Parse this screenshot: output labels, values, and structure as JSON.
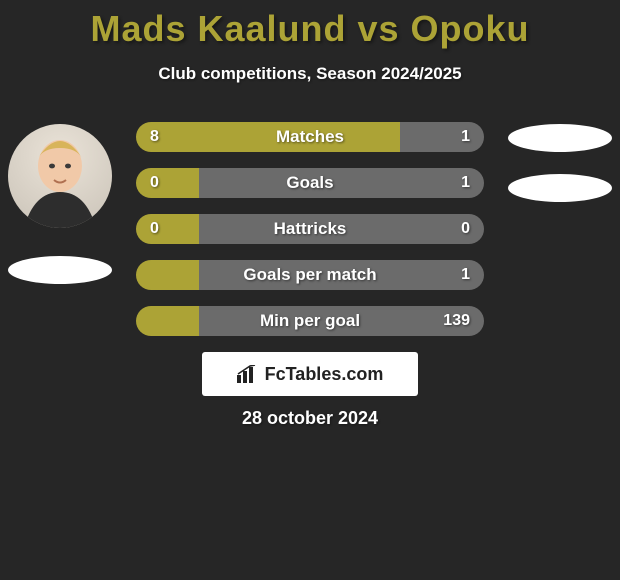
{
  "title_color": "#aca336",
  "title": "Mads Kaalund vs Opoku",
  "subtitle": "Club competitions, Season 2024/2025",
  "brand": "FcTables.com",
  "date": "28 october 2024",
  "colors": {
    "left_segment": "#aca336",
    "right_segment": "#6b6b6b",
    "background": "#262626",
    "text": "#ffffff"
  },
  "players": {
    "left": {
      "has_photo": true,
      "flag_shapes": 1
    },
    "right": {
      "has_photo": false,
      "flag_shapes": 2
    }
  },
  "rows": [
    {
      "category": "Matches",
      "left_display": "8",
      "right_display": "1",
      "left_pct": 76,
      "right_pct": 24
    },
    {
      "category": "Goals",
      "left_display": "0",
      "right_display": "1",
      "left_pct": 18,
      "right_pct": 82
    },
    {
      "category": "Hattricks",
      "left_display": "0",
      "right_display": "0",
      "left_pct": 18,
      "right_pct": 82
    },
    {
      "category": "Goals per match",
      "left_display": "",
      "right_display": "1",
      "left_pct": 18,
      "right_pct": 82
    },
    {
      "category": "Min per goal",
      "left_display": "",
      "right_display": "139",
      "left_pct": 18,
      "right_pct": 82
    }
  ]
}
